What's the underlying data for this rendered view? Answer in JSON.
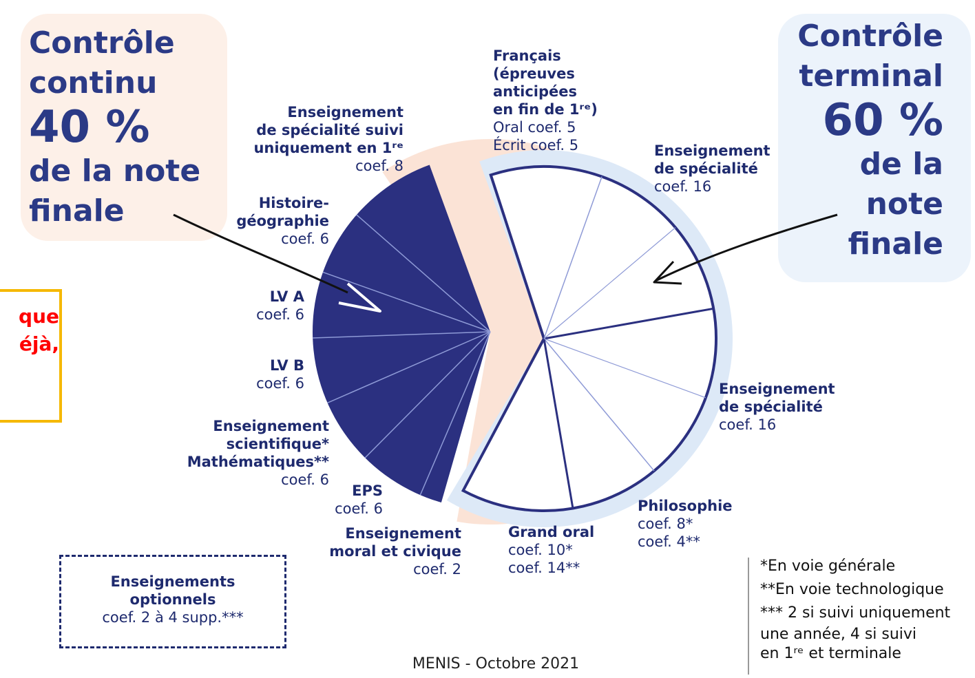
{
  "left_heading": {
    "line1": "Contrôle",
    "line2": "continu",
    "percent": "40 %",
    "line3": "de la note",
    "line4": "finale"
  },
  "right_heading": {
    "line1": "Contrôle",
    "line2": "terminal",
    "percent": "60 %",
    "line3": "de la",
    "line4": "note",
    "line5": "finale"
  },
  "overlay_text": {
    "line1": "que",
    "line2": "éjà,"
  },
  "continu_items": [
    {
      "title_lines": [
        "Enseignement",
        "de spécialité suivi",
        "uniquement en 1ʳᵉ"
      ],
      "coef": "coef. 8",
      "weight": 8
    },
    {
      "title_lines": [
        "Histoire-",
        "géographie"
      ],
      "coef": "coef. 6",
      "weight": 6
    },
    {
      "title_lines": [
        "LV A"
      ],
      "coef": "coef. 6",
      "weight": 6
    },
    {
      "title_lines": [
        "LV B"
      ],
      "coef": "coef. 6",
      "weight": 6
    },
    {
      "title_lines": [
        "Enseignement",
        "scientifique*",
        "Mathématiques**"
      ],
      "coef": "coef. 6",
      "weight": 6
    },
    {
      "title_lines": [
        "EPS"
      ],
      "coef": "coef. 6",
      "weight": 6
    },
    {
      "title_lines": [
        "Enseignement",
        "moral et civique"
      ],
      "coef": "coef. 2",
      "weight": 2
    }
  ],
  "terminal_items": [
    {
      "title_lines": [
        "Français",
        "(épreuves",
        "anticipées",
        "en fin de 1ʳᵉ)"
      ],
      "coef_lines": [
        "Oral coef. 5",
        "Écrit coef. 5"
      ],
      "weight": 10
    },
    {
      "title_lines": [
        "Enseignement",
        "de spécialité"
      ],
      "coef_lines": [
        "coef. 16"
      ],
      "weight": 16
    },
    {
      "title_lines": [
        "Enseignement",
        "de spécialité"
      ],
      "coef_lines": [
        "coef. 16"
      ],
      "weight": 16
    },
    {
      "title_lines": [
        "Philosophie"
      ],
      "coef_lines": [
        "coef. 8*",
        "coef. 4**"
      ],
      "weight": 8
    },
    {
      "title_lines": [
        "Grand oral"
      ],
      "coef_lines": [
        "coef. 10*",
        "coef. 14**"
      ],
      "weight": 10
    }
  ],
  "optional": {
    "title1": "Enseignements",
    "title2": "optionnels",
    "coef": "coef. 2 à 4 supp.***"
  },
  "footnotes": {
    "f1": "*En voie générale",
    "f2": "**En voie technologique",
    "f3a": "*** 2 si suivi uniquement",
    "f3b": "une année, 4 si suivi",
    "f3c": "en 1ʳᵉ et terminale"
  },
  "source": "MENIS - Octobre 2021",
  "colors": {
    "continu_fill": "#2b3080",
    "terminal_fill": "#ffffff",
    "terminal_stroke": "#2b3080",
    "continu_halo": "#fbe3d6",
    "terminal_halo": "#dde9f7",
    "divider": "#8e9ad6",
    "heading": "#2b3a86"
  }
}
